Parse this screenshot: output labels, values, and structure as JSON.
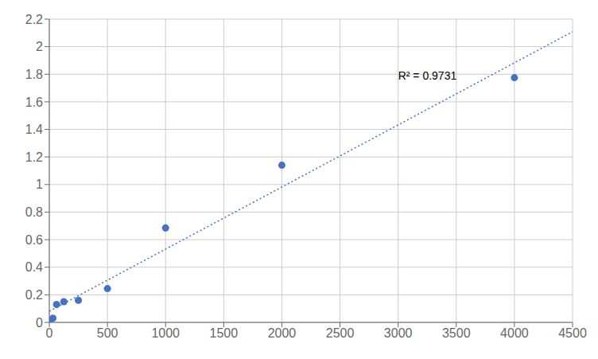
{
  "chart_data": {
    "type": "scatter",
    "x": [
      0,
      31.25,
      62.5,
      125,
      250,
      500,
      1000,
      2000,
      4000
    ],
    "y": [
      0.003,
      0.03,
      0.13,
      0.15,
      0.16,
      0.245,
      0.685,
      1.14,
      1.775
    ],
    "color": "#4472C4",
    "trendline": {
      "x": [
        0,
        4500
      ],
      "y": [
        0.0809,
        2.1082
      ],
      "color": "#4472C4",
      "line_style": "dotted"
    },
    "xlim": [
      0,
      4500
    ],
    "ylim": [
      0,
      2.2
    ],
    "xticks": [
      0,
      500,
      1000,
      1500,
      2000,
      2500,
      3000,
      3500,
      4000,
      4500
    ],
    "yticks": [
      0,
      0.2,
      0.4,
      0.6,
      0.8,
      1,
      1.2,
      1.4,
      1.6,
      1.8,
      2,
      2.2
    ],
    "grid": true,
    "annotations": [
      {
        "text": "R² = 0.9731",
        "x": 3000,
        "y": 1.83
      }
    ]
  }
}
